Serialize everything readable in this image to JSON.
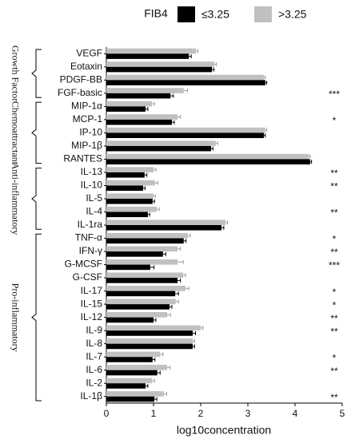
{
  "chart_data": {
    "type": "bar",
    "orientation": "horizontal",
    "legend_title": "FIB4",
    "xlabel": "log10concentration",
    "categories": [
      "VEGF",
      "Eotaxin",
      "PDGF-BB",
      "FGF-basic",
      "MIP-1α",
      "MCP-1",
      "IP-10",
      "MIP-1β",
      "RANTES",
      "IL-13",
      "IL-10",
      "IL-5",
      "IL-4",
      "IL-1ra",
      "TNF-α",
      "IFN-γ",
      "G-MCSF",
      "G-CSF",
      "IL-17",
      "IL-15",
      "IL-12",
      "IL-9",
      "IL-8",
      "IL-7",
      "IL-6",
      "IL-2",
      "IL-1β"
    ],
    "series": [
      {
        "name": ">3.25",
        "color": "#c0c0c0",
        "values": [
          1.9,
          2.29,
          3.34,
          1.64,
          0.97,
          1.51,
          3.37,
          2.32,
          4.29,
          1.0,
          1.03,
          1.0,
          1.07,
          2.53,
          1.73,
          1.51,
          1.51,
          1.63,
          1.68,
          1.47,
          1.29,
          2.0,
          1.83,
          1.14,
          1.29,
          0.97,
          1.22
        ],
        "errors": [
          0.04,
          0.04,
          0.03,
          0.08,
          0.05,
          0.06,
          0.03,
          0.04,
          0.03,
          0.05,
          0.06,
          0.04,
          0.05,
          0.04,
          0.05,
          0.06,
          0.12,
          0.05,
          0.07,
          0.06,
          0.07,
          0.05,
          0.04,
          0.06,
          0.06,
          0.05,
          0.06
        ]
      },
      {
        "name": "≤3.25",
        "color": "#000000",
        "values": [
          1.75,
          2.24,
          3.37,
          1.36,
          0.83,
          1.39,
          3.34,
          2.22,
          4.32,
          0.81,
          0.78,
          0.98,
          0.88,
          2.44,
          1.64,
          1.2,
          0.93,
          1.51,
          1.46,
          1.34,
          1.0,
          1.83,
          1.83,
          0.98,
          1.08,
          0.83,
          1.02
        ],
        "errors": [
          0.05,
          0.04,
          0.03,
          0.06,
          0.05,
          0.05,
          0.03,
          0.04,
          0.03,
          0.05,
          0.04,
          0.04,
          0.04,
          0.05,
          0.05,
          0.06,
          0.08,
          0.06,
          0.07,
          0.05,
          0.05,
          0.06,
          0.04,
          0.05,
          0.06,
          0.05,
          0.05
        ]
      }
    ],
    "significance": [
      null,
      null,
      null,
      "***",
      null,
      "*",
      null,
      null,
      null,
      "**",
      "**",
      null,
      "**",
      null,
      "*",
      "**",
      "***",
      null,
      "*",
      "*",
      "**",
      "**",
      null,
      "*",
      "**",
      null,
      "**"
    ],
    "groups": [
      {
        "name": "Growth Factor",
        "first": 0,
        "last": 3
      },
      {
        "name": "Chemoattractant",
        "first": 4,
        "last": 8
      },
      {
        "name": "Anti-inflammatory",
        "first": 9,
        "last": 13
      },
      {
        "name": "Pro-inflammatory",
        "first": 14,
        "last": 26
      }
    ],
    "xlim": [
      0,
      5
    ],
    "xticks": [
      0,
      1,
      2,
      3,
      4,
      5
    ]
  }
}
